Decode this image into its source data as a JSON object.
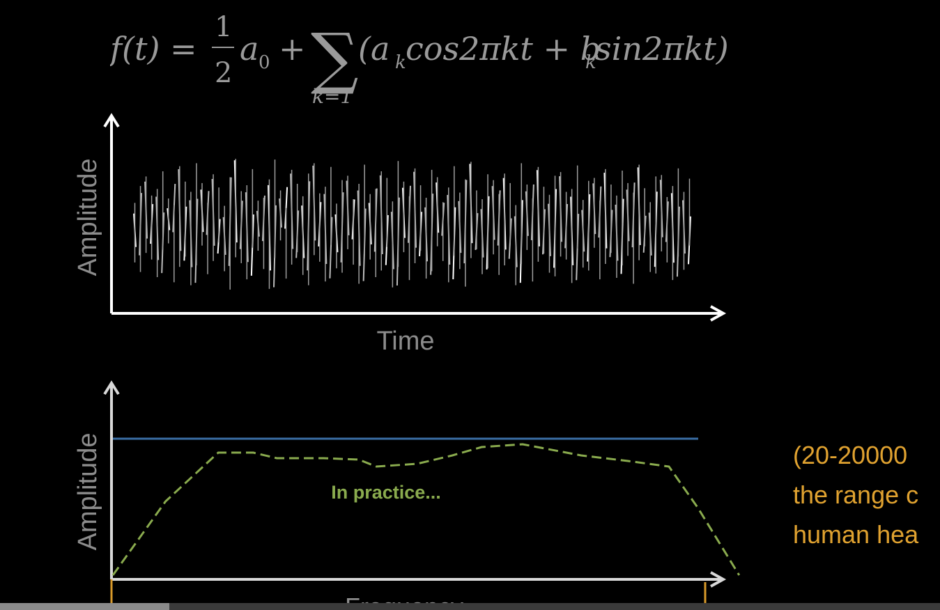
{
  "formula": {
    "lhs": "f(t) =",
    "frac_num": "1",
    "frac_den": "2",
    "a": "a",
    "a_sub": "0",
    "plus": "+",
    "sum_sym": "∑",
    "sum_upper": "∞",
    "sum_lower": "k=1",
    "term": "(a",
    "term_sub1": "k",
    "term_mid": "cos2πkt + b",
    "term_sub2": "k",
    "term_end": "sin2πkt)"
  },
  "chart_data": [
    {
      "type": "line",
      "title": "",
      "xlabel": "Time",
      "ylabel": "Amplitude",
      "description_series": "random noise waveform",
      "series": [
        {
          "values": [
            0.12,
            -0.35,
            0.48,
            -0.22,
            0.31,
            -0.55,
            0.18,
            -0.09,
            0.62,
            -0.41,
            0.27,
            -0.66,
            0.39,
            -0.12,
            0.51,
            -0.33,
            0.08,
            -0.47,
            0.72,
            -0.28,
            0.36,
            -0.58,
            0.15,
            -0.19,
            0.44,
            -0.71,
            0.29,
            -0.05,
            0.57,
            -0.38,
            0.21,
            -0.52,
            0.66,
            -0.25,
            0.34,
            -0.61,
            0.11,
            -0.43,
            0.49,
            -0.17,
            0.38,
            -0.64,
            0.24,
            -0.31,
            0.55,
            -0.46,
            0.14,
            -0.69,
            0.41,
            -0.21,
            0.59,
            -0.36,
            0.19,
            -0.57,
            0.47,
            -0.13,
            0.33,
            -0.62,
            0.26,
            -0.44,
            0.68,
            -0.29,
            0.17,
            -0.51,
            0.43,
            -0.24,
            0.52,
            -0.39,
            0.09,
            -0.66,
            0.37,
            -0.18,
            0.61,
            -0.34,
            0.23,
            -0.49,
            0.54,
            -0.27,
            0.31,
            -0.63,
            0.16,
            -0.42,
            0.46,
            -0.15,
            0.58,
            -0.37,
            0.22,
            -0.56,
            0.39,
            -0.26,
            0.64,
            -0.32,
            0.13,
            -0.48,
            0.5,
            -0.2,
            0.35,
            -0.59,
            0.27,
            -0.45
          ]
        }
      ],
      "ylim": [
        -1,
        1
      ]
    },
    {
      "type": "line",
      "title": "",
      "xlabel": "Frequency",
      "ylabel": "Amplitude",
      "x": [
        0,
        0.09,
        0.18,
        0.24,
        0.28,
        0.36,
        0.42,
        0.45,
        0.52,
        0.58,
        0.63,
        0.7,
        0.8,
        0.88,
        0.95,
        1.0,
        1.07
      ],
      "series": [
        {
          "style": "solid",
          "color": "#3a6ea5",
          "values": [
            1,
            1,
            1,
            1,
            1,
            1,
            1,
            1,
            1,
            1,
            1,
            1,
            1,
            1,
            1,
            1,
            null
          ]
        },
        {
          "name": "In practice...",
          "style": "dashed",
          "color": "#8aab4e",
          "values": [
            0.02,
            0.55,
            0.9,
            0.9,
            0.86,
            0.86,
            0.85,
            0.8,
            0.82,
            0.88,
            0.94,
            0.96,
            0.88,
            0.84,
            0.8,
            0.5,
            0.02
          ]
        }
      ],
      "series_label": "In practice...",
      "ylim": [
        0,
        1.1
      ]
    }
  ],
  "note": {
    "line1": "(20-20000",
    "line2": "the range c",
    "line3": "human hea"
  },
  "colors": {
    "axis": "#ffffff",
    "axis_lower": "#d8d8d8",
    "flat_line": "#3a6ea5",
    "practice_line": "#8aab4e",
    "note": "#e0a230",
    "marker": "#d89a2a"
  },
  "progress": {
    "fraction": 0.18
  }
}
